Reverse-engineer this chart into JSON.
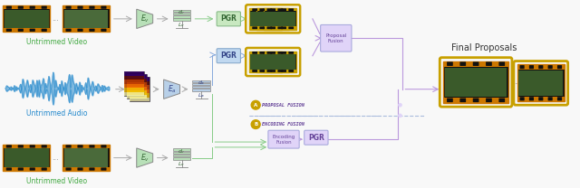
{
  "bg_color": "#f8f8f8",
  "title": "Final Proposals",
  "video_color": "#44aa44",
  "audio_color": "#2288cc",
  "golden": "#c8a000",
  "pgr_green_bg": "#c8e8c0",
  "pgr_green_edge": "#88bb88",
  "pgr_green_text": "#336633",
  "pgr_blue_bg": "#c0d8f0",
  "pgr_blue_edge": "#88aacc",
  "pgr_blue_text": "#334488",
  "fusion_purple_bg": "#e0d4f8",
  "fusion_purple_edge": "#aaaadd",
  "fusion_purple_text": "#664499",
  "encoder_green_bg": "#b8e0b8",
  "encoder_blue_bg": "#b8d0e8",
  "feat_green": "#b8e0b8",
  "feat_blue": "#b8d0e8",
  "arrow_gray": "#aaaaaa",
  "arrow_green": "#88cc88",
  "arrow_blue": "#88aadd",
  "arrow_purple": "#bb99dd",
  "dashed_blue": "#aabbdd",
  "film_orange": "#cc7700",
  "film_dark": "#111111",
  "film_hole": "#333333",
  "img_green1": "#3a5a2a",
  "img_green2": "#4a6a3a",
  "label_video": "Untrimmed Video",
  "label_audio": "Untrimmed Audio",
  "label_video2": "Untrimmed Video"
}
